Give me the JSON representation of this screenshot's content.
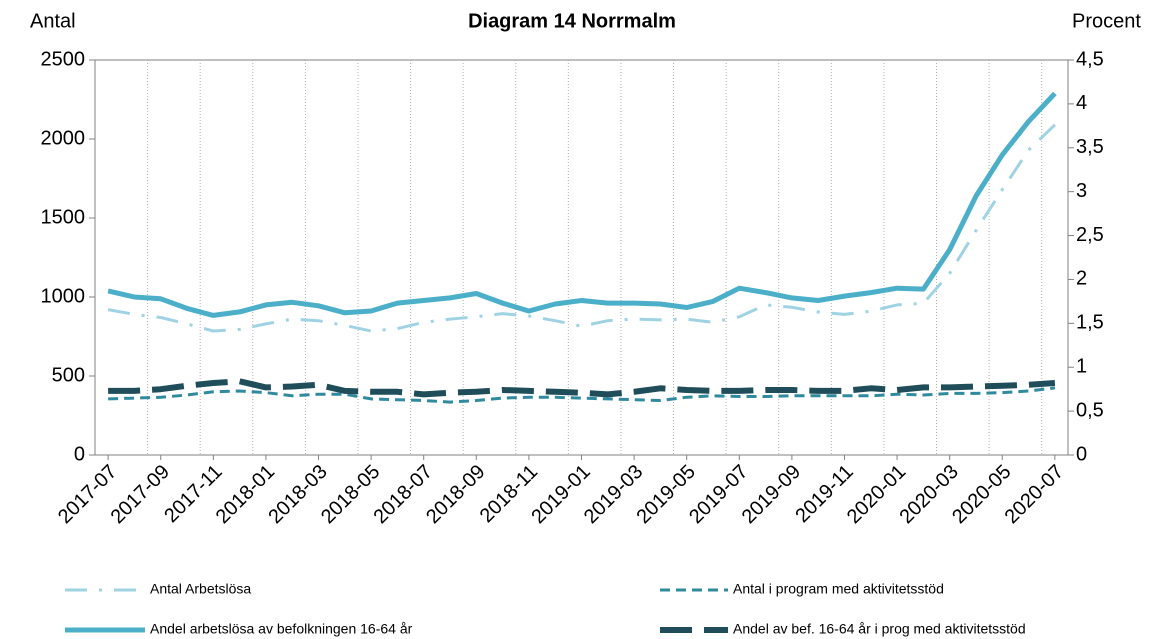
{
  "chart_data": {
    "type": "line",
    "title": "Diagram 14 Norrmalm",
    "y_label": "Antal",
    "y2_label": "Procent",
    "categories": [
      "2017-07",
      null,
      "2017-09",
      null,
      "2017-11",
      null,
      "2018-01",
      null,
      "2018-03",
      null,
      "2018-05",
      null,
      "2018-07",
      null,
      "2018-09",
      null,
      "2018-11",
      null,
      "2019-01",
      null,
      "2019-03",
      null,
      "2019-05",
      null,
      "2019-07",
      null,
      "2019-09",
      null,
      "2019-11",
      null,
      "2020-01",
      null,
      "2020-03",
      null,
      "2020-05",
      null,
      "2020-07"
    ],
    "ylim": [
      0,
      2500
    ],
    "yticks": [
      0,
      500,
      1000,
      1500,
      2000,
      2500
    ],
    "y2lim": [
      0,
      4.5
    ],
    "y2ticks": [
      0,
      {
        "value": 0.5,
        "label": "0,5"
      },
      1,
      {
        "value": 1.5,
        "label": "1,5"
      },
      2,
      {
        "value": 2.5,
        "label": "2,5"
      },
      3,
      {
        "value": 3.5,
        "label": "3,5"
      },
      4,
      {
        "value": 4.5,
        "label": "4,5"
      }
    ],
    "grid": true,
    "legend": "bottom",
    "series": [
      {
        "name": "Antal Arbetslösa",
        "color": "#9fd3e3",
        "style": "dashdot",
        "axis": "y",
        "values": [
          920,
          890,
          870,
          830,
          785,
          795,
          830,
          860,
          850,
          820,
          785,
          800,
          840,
          860,
          875,
          895,
          880,
          850,
          815,
          850,
          860,
          855,
          860,
          840,
          875,
          950,
          935,
          905,
          890,
          910,
          950,
          960,
          1150,
          1420,
          1680,
          1930,
          2090
        ]
      },
      {
        "name": "Antal i program med aktivitetsstöd",
        "color": "#2f8a9e",
        "style": "dashed",
        "axis": "y",
        "values": [
          355,
          360,
          365,
          380,
          400,
          405,
          395,
          375,
          385,
          385,
          355,
          350,
          345,
          335,
          345,
          360,
          365,
          365,
          360,
          355,
          350,
          345,
          365,
          375,
          370,
          370,
          375,
          375,
          375,
          375,
          385,
          380,
          390,
          390,
          395,
          405,
          425
        ]
      },
      {
        "name": "Andel arbetslösa av befolkningen 16-64 år",
        "color": "#4bafc9",
        "style": "solid",
        "axis": "y2",
        "values": [
          1.87,
          1.8,
          1.78,
          1.67,
          1.59,
          1.63,
          1.71,
          1.74,
          1.7,
          1.62,
          1.64,
          1.73,
          1.76,
          1.79,
          1.84,
          1.73,
          1.64,
          1.72,
          1.76,
          1.73,
          1.73,
          1.72,
          1.68,
          1.75,
          1.9,
          1.85,
          1.79,
          1.76,
          1.81,
          1.85,
          1.9,
          1.89,
          2.34,
          2.95,
          3.42,
          3.8,
          4.12
        ]
      },
      {
        "name": "Andel av bef. 16-64 år i prog med aktivitetsstöd",
        "color": "#1f4e5a",
        "style": "longdash",
        "axis": "y2",
        "values": [
          0.73,
          0.73,
          0.75,
          0.79,
          0.82,
          0.84,
          0.77,
          0.78,
          0.8,
          0.73,
          0.72,
          0.72,
          0.69,
          0.71,
          0.72,
          0.74,
          0.73,
          0.72,
          0.71,
          0.69,
          0.72,
          0.76,
          0.74,
          0.73,
          0.73,
          0.74,
          0.74,
          0.73,
          0.73,
          0.76,
          0.74,
          0.77,
          0.77,
          0.78,
          0.79,
          0.8,
          0.82
        ]
      }
    ]
  }
}
